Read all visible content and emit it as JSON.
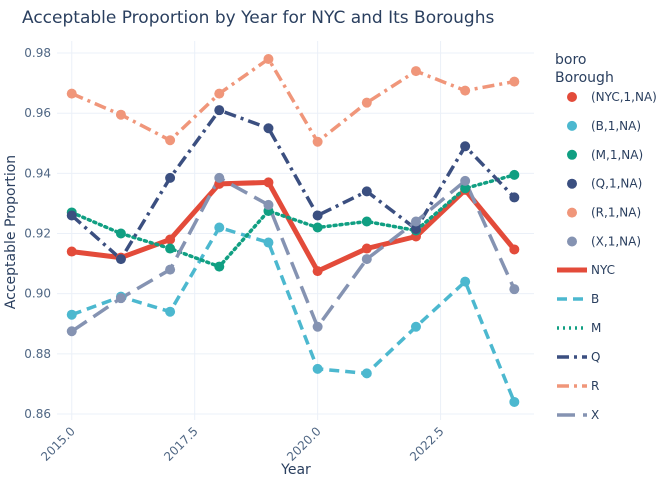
{
  "chart_data": {
    "type": "line",
    "title": "Acceptable Proportion by Year for NYC and Its Boroughs",
    "xlabel": "Year",
    "ylabel": "Acceptable Proportion",
    "xlim": [
      2014.7,
      2024.4
    ],
    "ylim": [
      0.858,
      0.984
    ],
    "x_ticks": [
      2015,
      2017.5,
      2020,
      2022.5
    ],
    "x_tick_labels": [
      "2015.0",
      "2017.5",
      "2020.0",
      "2022.5"
    ],
    "y_ticks": [
      0.86,
      0.88,
      0.9,
      0.92,
      0.94,
      0.96,
      0.98
    ],
    "y_tick_labels": [
      "0.86",
      "0.88",
      "0.90",
      "0.92",
      "0.94",
      "0.96",
      "0.98"
    ],
    "grid": true,
    "legend_title_line1": "boro",
    "legend_title_line2": "Borough",
    "x": [
      2015,
      2016,
      2017,
      2018,
      2019,
      2020,
      2021,
      2022,
      2023,
      2024
    ],
    "marker_series": [
      {
        "name": "(NYC,1,NA)",
        "color": "#e34b3a",
        "values": [
          0.914,
          0.912,
          0.918,
          0.9365,
          0.937,
          0.9075,
          0.915,
          0.919,
          0.9345,
          0.9147
        ]
      },
      {
        "name": "(B,1,NA)",
        "color": "#4cb8cf",
        "values": [
          0.893,
          0.899,
          0.894,
          0.922,
          0.917,
          0.875,
          0.8735,
          0.889,
          0.904,
          0.864
        ]
      },
      {
        "name": "(M,1,NA)",
        "color": "#109f82",
        "values": [
          0.927,
          0.92,
          0.915,
          0.909,
          0.9275,
          0.922,
          0.924,
          0.921,
          0.935,
          0.9395
        ]
      },
      {
        "name": "(Q,1,NA)",
        "color": "#3b4f80",
        "values": [
          0.926,
          0.9115,
          0.9385,
          0.961,
          0.955,
          0.926,
          0.934,
          0.9215,
          0.949,
          0.932
        ]
      },
      {
        "name": "(R,1,NA)",
        "color": "#f0967a",
        "values": [
          0.9665,
          0.9595,
          0.951,
          0.9665,
          0.978,
          0.9505,
          0.9635,
          0.974,
          0.9675,
          0.9705
        ]
      },
      {
        "name": "(X,1,NA)",
        "color": "#8593b2",
        "values": [
          0.8875,
          0.8985,
          0.908,
          0.9385,
          0.9295,
          0.889,
          0.9115,
          0.924,
          0.9375,
          0.9015
        ]
      }
    ],
    "line_series": [
      {
        "name": "NYC",
        "color": "#e34b3a",
        "dash": "solid",
        "values": [
          0.914,
          0.912,
          0.918,
          0.9365,
          0.937,
          0.9075,
          0.915,
          0.919,
          0.9345,
          0.9147
        ]
      },
      {
        "name": "B",
        "color": "#4cb8cf",
        "dash": "dash",
        "values": [
          0.893,
          0.899,
          0.894,
          0.922,
          0.917,
          0.875,
          0.8735,
          0.889,
          0.904,
          0.864
        ]
      },
      {
        "name": "M",
        "color": "#109f82",
        "dash": "dot",
        "values": [
          0.927,
          0.92,
          0.915,
          0.909,
          0.9275,
          0.922,
          0.924,
          0.921,
          0.935,
          0.9395
        ]
      },
      {
        "name": "Q",
        "color": "#3b4f80",
        "dash": "dashdot",
        "values": [
          0.926,
          0.9115,
          0.9385,
          0.961,
          0.955,
          0.926,
          0.934,
          0.9215,
          0.949,
          0.932
        ]
      },
      {
        "name": "R",
        "color": "#f0967a",
        "dash": "dashdot",
        "values": [
          0.9665,
          0.9595,
          0.951,
          0.9665,
          0.978,
          0.9505,
          0.9635,
          0.974,
          0.9675,
          0.9705
        ]
      },
      {
        "name": "X",
        "color": "#8593b2",
        "dash": "longdash",
        "values": [
          0.8875,
          0.8985,
          0.908,
          0.9385,
          0.9295,
          0.889,
          0.9115,
          0.924,
          0.9375,
          0.9015
        ]
      }
    ]
  }
}
